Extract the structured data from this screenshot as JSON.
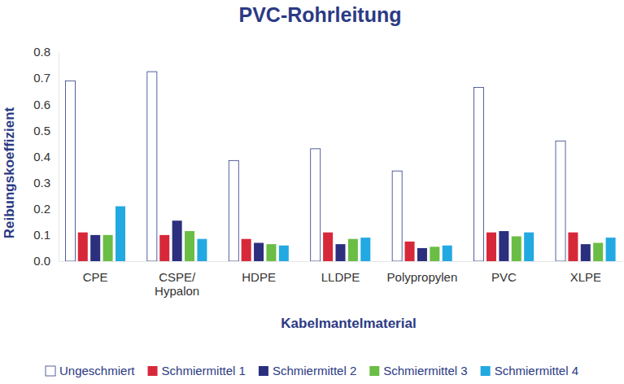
{
  "chart_data": {
    "type": "bar",
    "title": "PVC-Rohrleitung",
    "x_label": "Kabelmantelmaterial",
    "y_label": "Reibungskoeffizient",
    "categories": [
      "CPE",
      "CSPE/\nHypalon",
      "HDPE",
      "LLDPE",
      "Polypropylen",
      "PVC",
      "XLPE"
    ],
    "series": [
      {
        "name": "Ungeschmiert",
        "color": "#ffffff",
        "values": [
          0.69,
          0.725,
          0.385,
          0.43,
          0.345,
          0.665,
          0.46
        ]
      },
      {
        "name": "Schmiermittel 1",
        "color": "#d7283a",
        "values": [
          0.11,
          0.1,
          0.085,
          0.11,
          0.075,
          0.11,
          0.11
        ]
      },
      {
        "name": "Schmiermittel 2",
        "color": "#2b2f7e",
        "values": [
          0.1,
          0.155,
          0.07,
          0.065,
          0.05,
          0.115,
          0.065
        ]
      },
      {
        "name": "Schmiermittel 3",
        "color": "#6abd45",
        "values": [
          0.1,
          0.115,
          0.065,
          0.085,
          0.055,
          0.095,
          0.07
        ]
      },
      {
        "name": "Schmiermittel 4",
        "color": "#22a9e1",
        "values": [
          0.21,
          0.085,
          0.06,
          0.09,
          0.06,
          0.11,
          0.09
        ]
      }
    ],
    "ylim": [
      0,
      0.8
    ],
    "yticks": [
      {
        "value": 0,
        "label": "0.0"
      },
      0.1,
      0.2,
      0.3,
      0.4,
      0.5,
      0.6,
      0.7,
      0.8
    ],
    "grid": false,
    "legend": "bottom"
  }
}
